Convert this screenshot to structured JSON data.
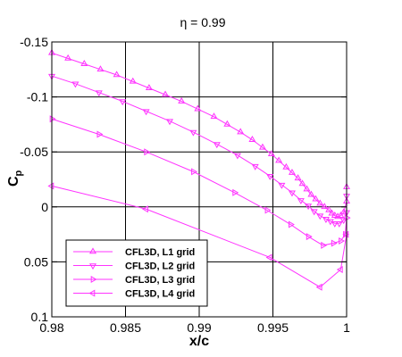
{
  "chart_data": {
    "type": "line",
    "title": "η = 0.99",
    "xlabel": "x/c",
    "ylabel": "C",
    "ylabel_sub": "p",
    "xlim": [
      0.98,
      1.0
    ],
    "ylim": [
      -0.15,
      0.1
    ],
    "y_inverted": true,
    "grid": true,
    "legend_position": "bottom-left",
    "line_color": "#ff33ff",
    "x_ticks": [
      0.98,
      0.985,
      0.99,
      0.995,
      1.0
    ],
    "x_tick_labels": [
      "0.98",
      "0.985",
      "0.99",
      "0.995",
      "1"
    ],
    "y_ticks": [
      -0.15,
      -0.1,
      -0.05,
      0,
      0.05,
      0.1
    ],
    "y_tick_labels": [
      "-0.15",
      "-0.1",
      "-0.05",
      "0",
      "0.05",
      "0.1"
    ],
    "series": [
      {
        "name": "CFL3D, L1 grid",
        "marker": "triangle-up",
        "x": [
          0.98,
          0.9811,
          0.9822,
          0.9833,
          0.9844,
          0.9855,
          0.9866,
          0.9877,
          0.9888,
          0.9899,
          0.991,
          0.9919,
          0.9928,
          0.9936,
          0.9943,
          0.9949,
          0.9954,
          0.9959,
          0.9963,
          0.9967,
          0.997,
          0.9973,
          0.9976,
          0.9979,
          0.9982,
          0.9985,
          0.9988,
          0.999,
          0.9992,
          0.9994,
          0.9996,
          0.9998,
          1.0,
          1.0
        ],
        "y": [
          -0.14,
          -0.135,
          -0.13,
          -0.125,
          -0.12,
          -0.114,
          -0.108,
          -0.102,
          -0.096,
          -0.089,
          -0.082,
          -0.075,
          -0.068,
          -0.061,
          -0.054,
          -0.048,
          -0.042,
          -0.036,
          -0.031,
          -0.026,
          -0.021,
          -0.016,
          -0.011,
          -0.007,
          -0.003,
          0.0,
          0.003,
          0.006,
          0.008,
          0.009,
          0.008,
          0.005,
          -0.005,
          -0.018
        ]
      },
      {
        "name": "CFL3D, L2 grid",
        "marker": "triangle-down",
        "x": [
          0.98,
          0.9816,
          0.9832,
          0.9848,
          0.9864,
          0.988,
          0.9896,
          0.9912,
          0.9926,
          0.9938,
          0.9948,
          0.9956,
          0.9963,
          0.9969,
          0.9974,
          0.9978,
          0.9982,
          0.9986,
          0.9989,
          0.9992,
          0.9995,
          0.9998,
          1.0,
          1.0
        ],
        "y": [
          -0.119,
          -0.112,
          -0.104,
          -0.096,
          -0.087,
          -0.078,
          -0.068,
          -0.057,
          -0.047,
          -0.037,
          -0.028,
          -0.02,
          -0.013,
          -0.006,
          -0.001,
          0.004,
          0.008,
          0.011,
          0.013,
          0.015,
          0.015,
          0.012,
          0.005,
          -0.01
        ]
      },
      {
        "name": "CFL3D, L3 grid",
        "marker": "triangle-right",
        "x": [
          0.98,
          0.9832,
          0.9864,
          0.9896,
          0.9924,
          0.9946,
          0.9962,
          0.9974,
          0.9984,
          0.9991,
          0.9996,
          0.9999,
          1.0
        ],
        "y": [
          -0.08,
          -0.066,
          -0.05,
          -0.032,
          -0.013,
          0.003,
          0.016,
          0.027,
          0.035,
          0.033,
          0.031,
          0.025,
          0.01
        ]
      },
      {
        "name": "CFL3D, L4 grid",
        "marker": "triangle-left",
        "x": [
          0.98,
          0.9864,
          0.9948,
          0.9982,
          0.9996,
          1.0
        ],
        "y": [
          -0.019,
          0.002,
          0.046,
          0.073,
          0.057,
          0.025
        ]
      }
    ]
  }
}
